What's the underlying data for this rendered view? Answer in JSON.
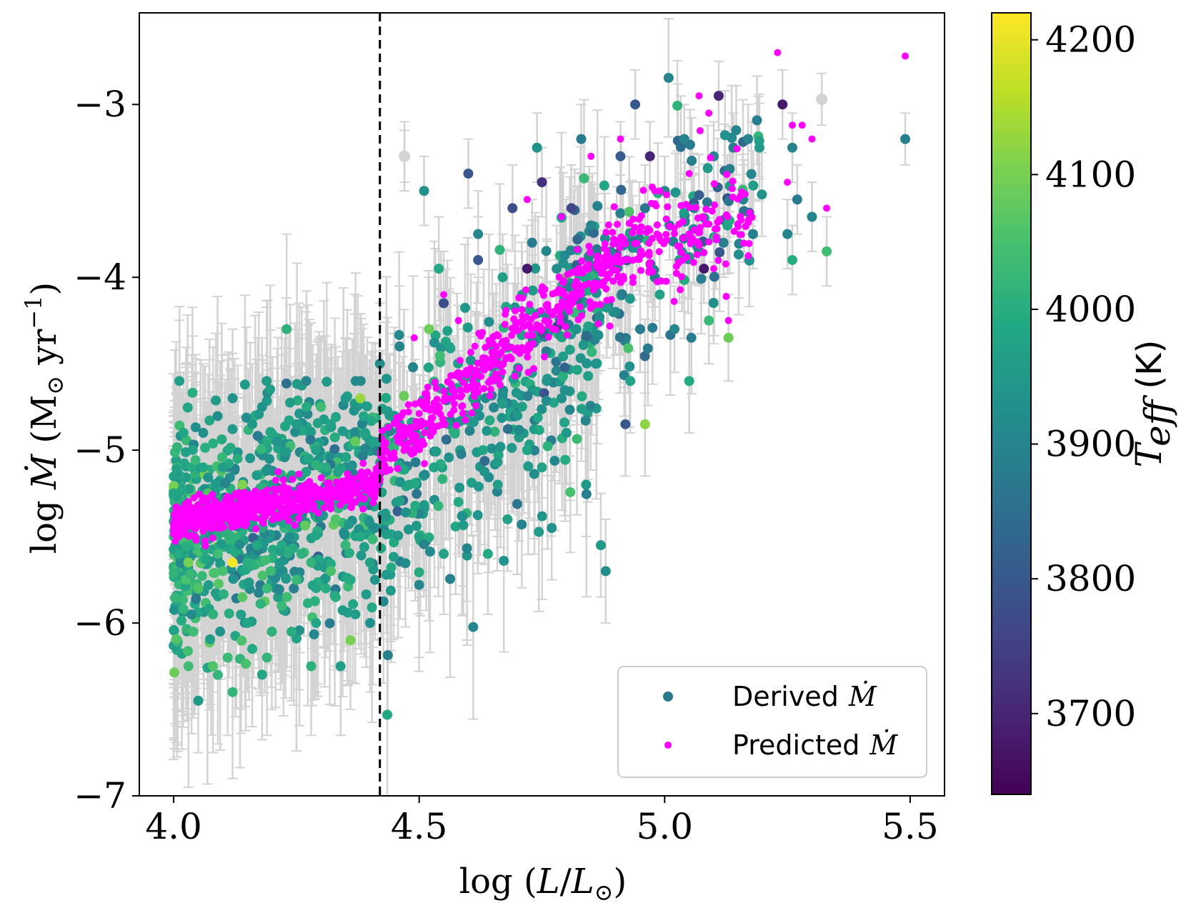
{
  "chart_data": {
    "type": "scatter",
    "xlabel": "log (L/L⊙)",
    "ylabel_text": "log Ṁ (M⊙ yr⁻¹)",
    "xlim": [
      3.93,
      5.57
    ],
    "ylim": [
      -7.0,
      -2.47
    ],
    "xticks": [
      4.0,
      4.5,
      5.0,
      5.5
    ],
    "xtick_labels": [
      "4.0",
      "4.5",
      "5.0",
      "5.5"
    ],
    "yticks": [
      -3,
      -4,
      -5,
      -6,
      -7
    ],
    "ytick_labels": [
      "−3",
      "−4",
      "−5",
      "−6",
      "−7"
    ],
    "grid": false,
    "legend_position": "bottom-right",
    "vertical_line": {
      "x": 4.42,
      "style": "dashed",
      "color": "#000000"
    },
    "colorbar": {
      "label_symbol": "T",
      "label_subscript": "eff",
      "label_unit": " (K)",
      "range": [
        3640,
        4220
      ],
      "ticks": [
        3700,
        3800,
        3900,
        4000,
        4100,
        4200
      ],
      "tick_labels": [
        "3700",
        "3800",
        "3900",
        "4000",
        "4100",
        "4200"
      ],
      "colormap": "viridis"
    },
    "series": [
      {
        "name": "Derived Ṁ",
        "legend_name": "Derived",
        "legend_math": "Ṁ",
        "marker": "circle",
        "colored_by": "T_eff",
        "legend_color": "#2a788e",
        "errorbar_color": "#d3d3d3",
        "points": [
          [
            4.0,
            -5.25,
            3980,
            0.45
          ],
          [
            4.01,
            -5.6,
            3990,
            0.5
          ],
          [
            4.02,
            -5.92,
            4020,
            0.65
          ],
          [
            4.03,
            -6.25,
            4040,
            0.7
          ],
          [
            4.04,
            -5.4,
            3960,
            0.4
          ],
          [
            4.05,
            -6.45,
            3950,
            0.3
          ],
          [
            4.05,
            -5.8,
            4060,
            0.55
          ],
          [
            4.06,
            -4.9,
            3930,
            0.4
          ],
          [
            4.07,
            -5.3,
            4000,
            0.5
          ],
          [
            4.08,
            -5.95,
            4010,
            0.45
          ],
          [
            4.09,
            -6.3,
            4020,
            0.4
          ],
          [
            4.1,
            -5.1,
            3960,
            0.35
          ],
          [
            4.1,
            -5.7,
            4050,
            0.55
          ],
          [
            4.11,
            -6.2,
            4030,
            0.45
          ],
          [
            4.12,
            -4.7,
            3930,
            0.4
          ],
          [
            4.13,
            -5.4,
            3990,
            0.4
          ],
          [
            4.14,
            -5.85,
            4070,
            0.45
          ],
          [
            4.15,
            -6.0,
            3980,
            0.4
          ],
          [
            4.16,
            -4.85,
            3950,
            0.35
          ],
          [
            4.17,
            -5.55,
            3990,
            0.4
          ],
          [
            4.18,
            -4.75,
            3940,
            0.4
          ],
          [
            4.19,
            -6.2,
            4020,
            0.45
          ],
          [
            4.2,
            -5.2,
            3970,
            0.4
          ],
          [
            4.21,
            -4.95,
            3940,
            0.35
          ],
          [
            4.22,
            -5.9,
            4030,
            0.45
          ],
          [
            4.23,
            -4.3,
            4010,
            0.55
          ],
          [
            4.24,
            -6.05,
            4000,
            0.4
          ],
          [
            4.25,
            -4.85,
            3960,
            0.35
          ],
          [
            4.26,
            -5.6,
            4010,
            0.4
          ],
          [
            4.27,
            -4.6,
            3900,
            0.4
          ],
          [
            4.28,
            -6.25,
            4010,
            0.4
          ],
          [
            4.29,
            -5.0,
            3970,
            0.35
          ],
          [
            4.3,
            -4.75,
            4040,
            0.4
          ],
          [
            4.31,
            -5.8,
            4000,
            0.4
          ],
          [
            4.32,
            -4.85,
            3970,
            0.35
          ],
          [
            4.33,
            -5.4,
            4060,
            0.4
          ],
          [
            4.34,
            -6.25,
            3960,
            0.4
          ],
          [
            4.35,
            -4.7,
            3950,
            0.35
          ],
          [
            4.36,
            -5.3,
            4010,
            0.35
          ],
          [
            4.37,
            -4.95,
            4080,
            0.35
          ],
          [
            4.38,
            -5.5,
            3990,
            0.35
          ],
          [
            4.39,
            -4.9,
            3970,
            0.3
          ],
          [
            4.4,
            -6.0,
            3930,
            0.4
          ],
          [
            4.41,
            -5.45,
            3920,
            0.35
          ],
          [
            4.02,
            -5.5,
            4050,
            0.45
          ],
          [
            4.06,
            -5.1,
            3980,
            0.4
          ],
          [
            4.09,
            -5.6,
            4040,
            0.45
          ],
          [
            4.13,
            -5.05,
            4000,
            0.35
          ],
          [
            4.18,
            -5.45,
            4000,
            0.4
          ],
          [
            4.22,
            -5.55,
            3990,
            0.4
          ],
          [
            4.27,
            -5.3,
            3970,
            0.35
          ],
          [
            4.31,
            -5.1,
            4000,
            0.35
          ],
          [
            4.35,
            -5.55,
            4020,
            0.35
          ],
          [
            4.39,
            -5.25,
            3990,
            0.35
          ],
          [
            4.04,
            -6.05,
            4040,
            0.5
          ],
          [
            4.08,
            -6.25,
            4060,
            0.5
          ],
          [
            4.12,
            -6.4,
            4020,
            0.5
          ],
          [
            4.16,
            -6.15,
            3990,
            0.45
          ],
          [
            4.2,
            -6.05,
            4010,
            0.45
          ],
          [
            4.25,
            -5.75,
            4030,
            0.4
          ],
          [
            4.29,
            -6.0,
            3980,
            0.4
          ],
          [
            4.33,
            -5.85,
            4000,
            0.4
          ],
          [
            4.37,
            -5.95,
            3960,
            0.4
          ],
          [
            4.41,
            -5.75,
            3940,
            0.35
          ],
          [
            4.02,
            -4.9,
            3980,
            0.35
          ],
          [
            4.07,
            -5.25,
            4060,
            0.4
          ],
          [
            4.11,
            -5.45,
            4010,
            0.4
          ],
          [
            4.15,
            -5.65,
            4000,
            0.4
          ],
          [
            4.19,
            -5.8,
            4030,
            0.4
          ],
          [
            4.24,
            -5.45,
            4000,
            0.35
          ],
          [
            4.28,
            -5.65,
            4020,
            0.35
          ],
          [
            4.32,
            -5.7,
            4050,
            0.35
          ],
          [
            4.36,
            -5.75,
            3990,
            0.35
          ],
          [
            4.4,
            -5.65,
            3970,
            0.35
          ],
          [
            4.03,
            -5.65,
            4100,
            0.45
          ],
          [
            4.14,
            -5.2,
            4110,
            0.4
          ],
          [
            4.36,
            -6.1,
            4100,
            0.4
          ],
          [
            4.38,
            -4.7,
            4130,
            0.3
          ],
          [
            4.12,
            -5.65,
            4210,
            0.3
          ],
          [
            4.42,
            -4.5,
            3920,
            0.35
          ],
          [
            4.44,
            -4.8,
            3950,
            0.35
          ],
          [
            4.46,
            -4.4,
            3900,
            0.35
          ],
          [
            4.47,
            -3.3,
            3950,
            0.2
          ],
          [
            4.48,
            -5.2,
            3980,
            0.35
          ],
          [
            4.49,
            -4.95,
            3960,
            0.3
          ],
          [
            4.5,
            -5.5,
            3970,
            0.35
          ],
          [
            4.51,
            -3.5,
            3930,
            0.2
          ],
          [
            4.52,
            -4.3,
            4090,
            0.3
          ],
          [
            4.53,
            -5.1,
            3980,
            0.3
          ],
          [
            4.54,
            -3.95,
            3990,
            0.3
          ],
          [
            4.55,
            -5.6,
            3970,
            0.35
          ],
          [
            4.55,
            -4.15,
            3780,
            0.3
          ],
          [
            4.56,
            -4.85,
            3950,
            0.3
          ],
          [
            4.58,
            -5.3,
            3990,
            0.3
          ],
          [
            4.59,
            -4.6,
            3960,
            0.3
          ],
          [
            4.6,
            -3.4,
            3800,
            0.2
          ],
          [
            4.61,
            -4.7,
            3950,
            0.3
          ],
          [
            4.62,
            -3.9,
            3800,
            0.25
          ],
          [
            4.62,
            -3.75,
            3900,
            0.25
          ],
          [
            4.63,
            -5.0,
            3980,
            0.3
          ],
          [
            4.64,
            -5.6,
            3990,
            0.35
          ],
          [
            4.65,
            -4.4,
            3940,
            0.3
          ],
          [
            4.66,
            -5.2,
            3960,
            0.3
          ],
          [
            4.67,
            -4.0,
            3960,
            0.25
          ],
          [
            4.68,
            -5.4,
            3970,
            0.3
          ],
          [
            4.69,
            -3.6,
            3780,
            0.25
          ],
          [
            4.7,
            -4.8,
            3950,
            0.3
          ],
          [
            4.71,
            -4.1,
            3960,
            0.25
          ],
          [
            4.72,
            -3.95,
            3680,
            0.25
          ],
          [
            4.72,
            -5.0,
            3980,
            0.3
          ],
          [
            4.73,
            -3.8,
            3880,
            0.25
          ],
          [
            4.74,
            -3.25,
            3930,
            0.2
          ],
          [
            4.75,
            -3.45,
            3720,
            0.2
          ],
          [
            4.75,
            -5.1,
            3970,
            0.3
          ],
          [
            4.76,
            -4.6,
            3940,
            0.3
          ],
          [
            4.77,
            -5.45,
            3930,
            0.3
          ],
          [
            4.78,
            -3.95,
            3920,
            0.25
          ],
          [
            4.79,
            -4.7,
            3930,
            0.3
          ],
          [
            4.8,
            -4.9,
            3950,
            0.3
          ],
          [
            4.81,
            -3.6,
            3760,
            0.25
          ],
          [
            4.82,
            -4.3,
            3930,
            0.25
          ],
          [
            4.83,
            -3.2,
            3880,
            0.2
          ],
          [
            4.84,
            -5.2,
            3950,
            0.3
          ],
          [
            4.85,
            -3.7,
            3900,
            0.25
          ],
          [
            4.86,
            -4.5,
            3940,
            0.3
          ],
          [
            4.87,
            -5.55,
            3950,
            0.3
          ],
          [
            4.88,
            -5.7,
            3920,
            0.3
          ],
          [
            4.89,
            -3.85,
            3900,
            0.25
          ],
          [
            4.9,
            -4.2,
            3920,
            0.25
          ],
          [
            4.91,
            -3.3,
            3810,
            0.2
          ],
          [
            4.92,
            -4.85,
            3800,
            0.3
          ],
          [
            4.93,
            -4.6,
            3970,
            0.3
          ],
          [
            4.94,
            -3.0,
            3800,
            0.2
          ],
          [
            4.95,
            -4.3,
            3880,
            0.25
          ],
          [
            4.96,
            -4.85,
            4120,
            0.3
          ],
          [
            4.96,
            -3.6,
            3870,
            0.25
          ],
          [
            4.97,
            -3.3,
            3700,
            0.2
          ],
          [
            4.98,
            -4.0,
            3880,
            0.25
          ],
          [
            4.99,
            -4.1,
            3970,
            0.25
          ],
          [
            5.0,
            -3.5,
            3900,
            0.2
          ],
          [
            5.01,
            -3.7,
            3880,
            0.2
          ],
          [
            5.02,
            -4.3,
            3910,
            0.25
          ],
          [
            5.03,
            -3.9,
            3980,
            0.25
          ],
          [
            5.04,
            -3.2,
            3900,
            0.2
          ],
          [
            5.05,
            -4.6,
            3990,
            0.3
          ],
          [
            5.06,
            -3.6,
            3900,
            0.2
          ],
          [
            5.07,
            -3.85,
            3880,
            0.2
          ],
          [
            5.08,
            -3.95,
            3680,
            0.2
          ],
          [
            5.09,
            -4.25,
            4030,
            0.25
          ],
          [
            5.1,
            -3.3,
            3900,
            0.2
          ],
          [
            5.11,
            -2.95,
            3700,
            0.2
          ],
          [
            5.12,
            -3.8,
            3890,
            0.2
          ],
          [
            5.13,
            -4.35,
            4090,
            0.25
          ],
          [
            5.14,
            -3.25,
            3880,
            0.2
          ],
          [
            5.16,
            -3.55,
            3900,
            0.2
          ],
          [
            5.17,
            -3.2,
            3900,
            0.2
          ],
          [
            5.18,
            -3.75,
            3890,
            0.2
          ],
          [
            5.24,
            -3.0,
            3680,
            0.2
          ],
          [
            5.25,
            -3.75,
            3900,
            0.2
          ],
          [
            5.26,
            -3.9,
            4000,
            0.2
          ],
          [
            5.27,
            -3.55,
            3880,
            0.2
          ],
          [
            5.3,
            -3.65,
            3900,
            0.2
          ],
          [
            5.33,
            -3.85,
            4040,
            0.2
          ],
          [
            5.26,
            -3.25,
            3900,
            0.2
          ],
          [
            5.49,
            -3.2,
            3890,
            0.15
          ]
        ]
      },
      {
        "name": "Predicted Ṁ",
        "legend_name": "Predicted",
        "legend_math": "Ṁ",
        "marker": "circle",
        "color": "#ff00ff"
      }
    ],
    "uncolored_points": [
      [
        4.47,
        -3.3
      ],
      [
        5.32,
        -2.97
      ]
    ]
  }
}
